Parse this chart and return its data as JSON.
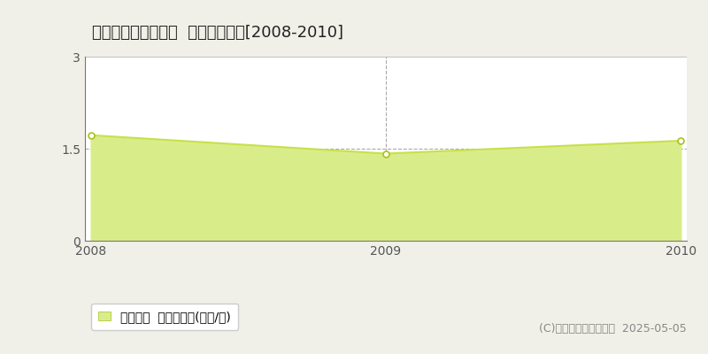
{
  "title": "檜山郡江差町越前町  土地価格推移[2008-2010]",
  "years": [
    2008,
    2009,
    2010
  ],
  "values": [
    1.72,
    1.42,
    1.63
  ],
  "ylim": [
    0,
    3
  ],
  "yticks": [
    0,
    1.5,
    3
  ],
  "line_color": "#c8e04a",
  "fill_color": "#d8ed8a",
  "marker_color": "white",
  "marker_edge_color": "#aac020",
  "grid_color": "#aaaaaa",
  "plot_bg_color": "#ffffff",
  "outer_bg_color": "#f0f0e8",
  "legend_label": "土地価格  平均坪単価(万円/坪)",
  "copyright": "(C)土地価格ドットコム  2025-05-05",
  "title_fontsize": 13,
  "tick_fontsize": 10,
  "legend_fontsize": 10,
  "copyright_fontsize": 9
}
